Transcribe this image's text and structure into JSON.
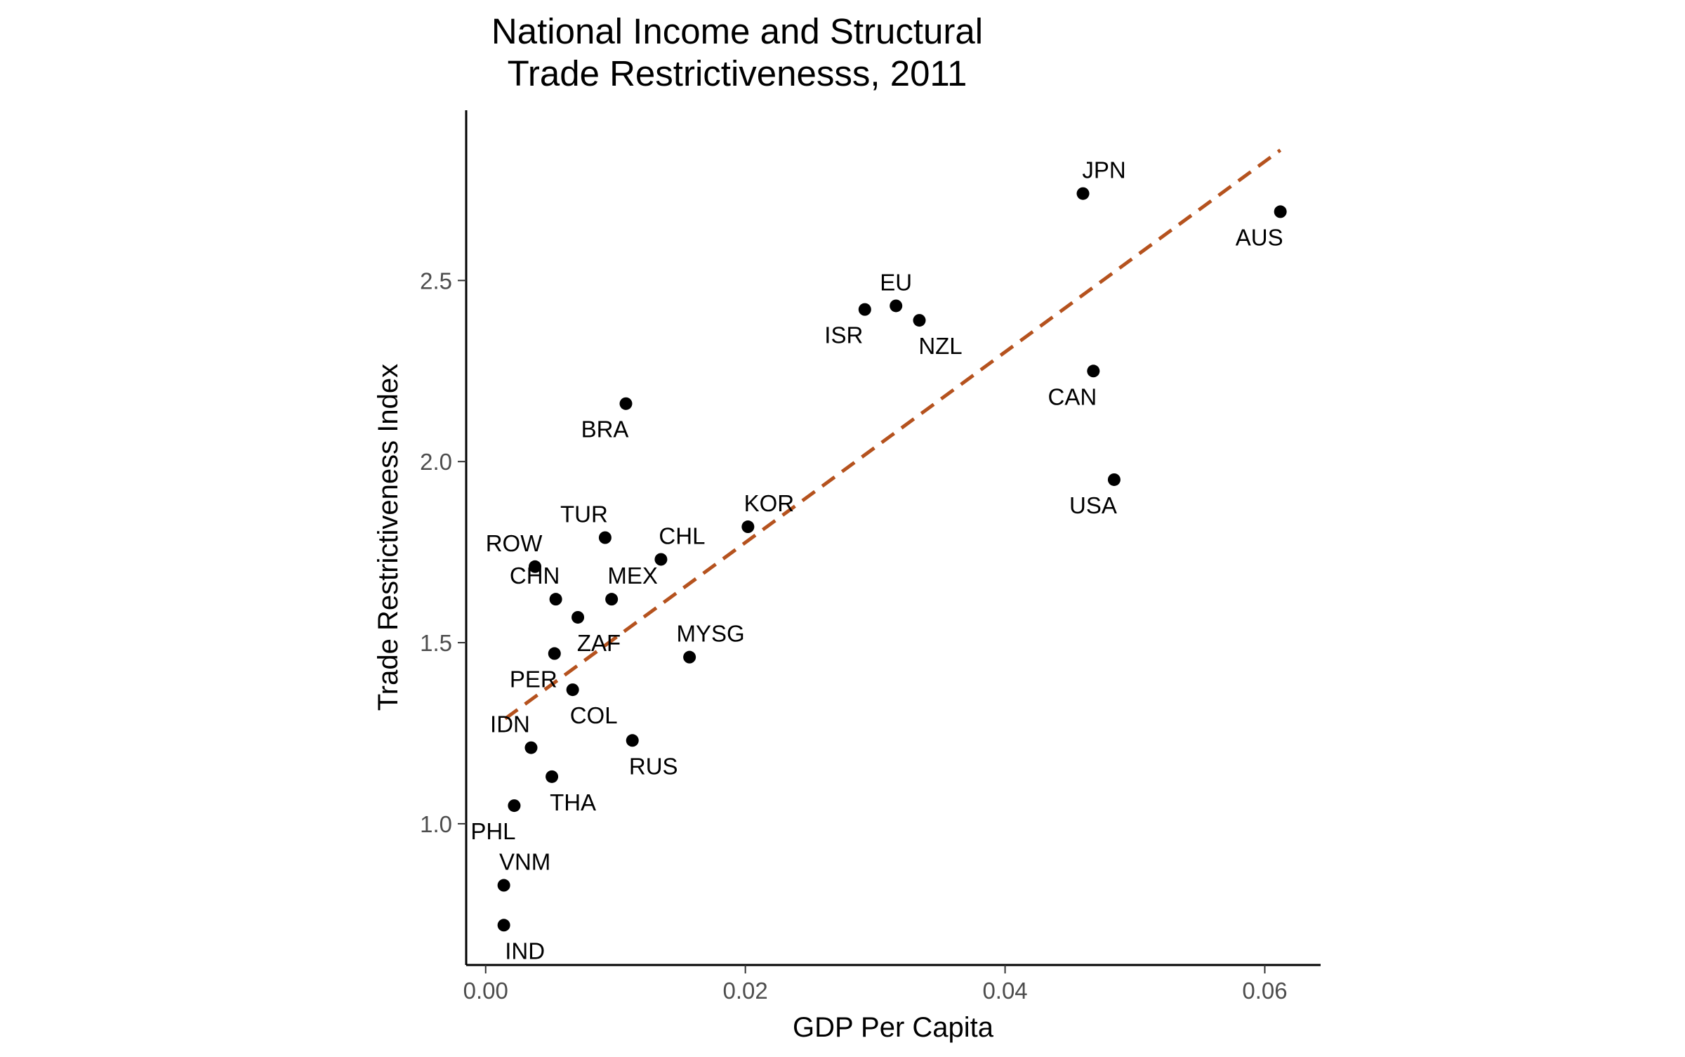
{
  "chart_data": {
    "type": "scatter",
    "title_lines": [
      "National Income and Structural",
      "Trade Restrictivenesss, 2011"
    ],
    "xlabel": "GDP Per Capita",
    "ylabel": "Trade Restrictiveness Index",
    "xlim": [
      -0.0015,
      0.0643
    ],
    "ylim": [
      0.61,
      2.97
    ],
    "x_ticks": [
      {
        "value": 0.0,
        "label": "0.00"
      },
      {
        "value": 0.02,
        "label": "0.02"
      },
      {
        "value": 0.04,
        "label": "0.04"
      },
      {
        "value": 0.06,
        "label": "0.06"
      }
    ],
    "y_ticks": [
      {
        "value": 1.0,
        "label": "1.0"
      },
      {
        "value": 1.5,
        "label": "1.5"
      },
      {
        "value": 2.0,
        "label": "2.0"
      },
      {
        "value": 2.5,
        "label": "2.5"
      }
    ],
    "grid": false,
    "point_color": "#000000",
    "fit_line": {
      "style": "dashed",
      "color": "#b5521e",
      "x": [
        0.0015,
        0.0612
      ],
      "y": [
        1.29,
        2.86
      ]
    },
    "points": [
      {
        "label": "JPN",
        "x": 0.046,
        "y": 2.74,
        "label_pos": "above-right"
      },
      {
        "label": "AUS",
        "x": 0.0612,
        "y": 2.69,
        "label_pos": "below-left"
      },
      {
        "label": "EU",
        "x": 0.0316,
        "y": 2.43,
        "label_pos": "above"
      },
      {
        "label": "ISR",
        "x": 0.0292,
        "y": 2.42,
        "label_pos": "below-left"
      },
      {
        "label": "NZL",
        "x": 0.0334,
        "y": 2.39,
        "label_pos": "below-right"
      },
      {
        "label": "CAN",
        "x": 0.0468,
        "y": 2.25,
        "label_pos": "below-left"
      },
      {
        "label": "BRA",
        "x": 0.0108,
        "y": 2.16,
        "label_pos": "below-left"
      },
      {
        "label": "USA",
        "x": 0.0484,
        "y": 1.95,
        "label_pos": "below-left"
      },
      {
        "label": "KOR",
        "x": 0.0202,
        "y": 1.82,
        "label_pos": "above-right"
      },
      {
        "label": "TUR",
        "x": 0.0092,
        "y": 1.79,
        "label_pos": "above-left"
      },
      {
        "label": "CHL",
        "x": 0.0135,
        "y": 1.73,
        "label_pos": "above-right"
      },
      {
        "label": "ROW",
        "x": 0.0038,
        "y": 1.71,
        "label_pos": "above-left"
      },
      {
        "label": "CHN",
        "x": 0.0054,
        "y": 1.62,
        "label_pos": "above-left"
      },
      {
        "label": "MEX",
        "x": 0.0097,
        "y": 1.62,
        "label_pos": "above-right"
      },
      {
        "label": "ZAF",
        "x": 0.0071,
        "y": 1.57,
        "label_pos": "below-right"
      },
      {
        "label": "PER",
        "x": 0.0053,
        "y": 1.47,
        "label_pos": "below-left"
      },
      {
        "label": "MYSG",
        "x": 0.0157,
        "y": 1.46,
        "label_pos": "above-right"
      },
      {
        "label": "COL",
        "x": 0.0067,
        "y": 1.37,
        "label_pos": "below-right"
      },
      {
        "label": "RUS",
        "x": 0.0113,
        "y": 1.23,
        "label_pos": "below-right"
      },
      {
        "label": "IDN",
        "x": 0.0035,
        "y": 1.21,
        "label_pos": "above-left"
      },
      {
        "label": "THA",
        "x": 0.0051,
        "y": 1.13,
        "label_pos": "below-right"
      },
      {
        "label": "PHL",
        "x": 0.0022,
        "y": 1.05,
        "label_pos": "below-left"
      },
      {
        "label": "VNM",
        "x": 0.0014,
        "y": 0.83,
        "label_pos": "above-right"
      },
      {
        "label": "IND",
        "x": 0.0014,
        "y": 0.72,
        "label_pos": "below-right"
      }
    ]
  }
}
